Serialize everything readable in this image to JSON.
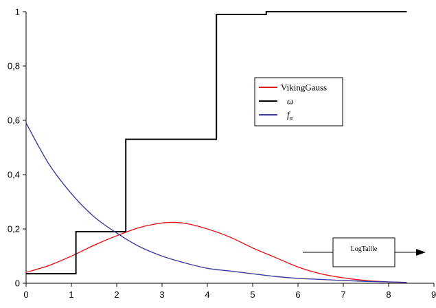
{
  "chart_data": {
    "type": "line",
    "title": "",
    "xlabel": "",
    "ylabel": "",
    "xlim": [
      0,
      9
    ],
    "ylim": [
      0,
      1
    ],
    "x_ticks": [
      "0",
      "1",
      "2",
      "3",
      "4",
      "5",
      "6",
      "7",
      "8",
      "9"
    ],
    "y_ticks": [
      "0",
      "0,2",
      "0,4",
      "0,6",
      "0,8",
      "1"
    ],
    "grid": false,
    "legend": {
      "placement": "center-right",
      "entries": [
        {
          "label": "VikingGauss",
          "color": "#e0191e",
          "italic": false
        },
        {
          "label": "ω",
          "color": "#000000",
          "italic": true
        },
        {
          "label": "fα",
          "color": "#3a3a9e",
          "italic": true
        }
      ]
    },
    "annotation": {
      "text": "LogTaille",
      "arrow": "right"
    },
    "series": [
      {
        "name": "VikingGauss",
        "color": "#e0191e",
        "style": "smooth",
        "x": [
          0,
          0.5,
          1.0,
          1.5,
          2.0,
          2.5,
          3.0,
          3.3,
          3.6,
          4.0,
          4.5,
          5.0,
          5.5,
          6.0,
          6.5,
          7.0,
          7.5,
          8.0,
          8.4
        ],
        "y": [
          0.04,
          0.065,
          0.1,
          0.14,
          0.175,
          0.205,
          0.222,
          0.224,
          0.218,
          0.2,
          0.17,
          0.13,
          0.095,
          0.06,
          0.035,
          0.02,
          0.01,
          0.005,
          0.003
        ]
      },
      {
        "name": "ω",
        "color": "#000000",
        "style": "step",
        "x": [
          0,
          1.1,
          1.1,
          2.2,
          2.2,
          4.2,
          4.2,
          5.3,
          5.3,
          8.4
        ],
        "y": [
          0.035,
          0.035,
          0.19,
          0.19,
          0.53,
          0.53,
          0.99,
          0.99,
          1.0,
          1.0
        ]
      },
      {
        "name": "fα",
        "color": "#3a3a9e",
        "style": "smooth",
        "x": [
          0,
          0.5,
          1.0,
          1.5,
          2.0,
          2.5,
          3.0,
          3.5,
          4.0,
          4.5,
          5.0,
          5.5,
          6.0,
          6.5,
          7.0,
          7.5,
          8.0,
          8.4
        ],
        "y": [
          0.59,
          0.44,
          0.33,
          0.245,
          0.185,
          0.135,
          0.1,
          0.075,
          0.055,
          0.045,
          0.035,
          0.025,
          0.018,
          0.014,
          0.01,
          0.007,
          0.005,
          0.003
        ]
      }
    ]
  }
}
